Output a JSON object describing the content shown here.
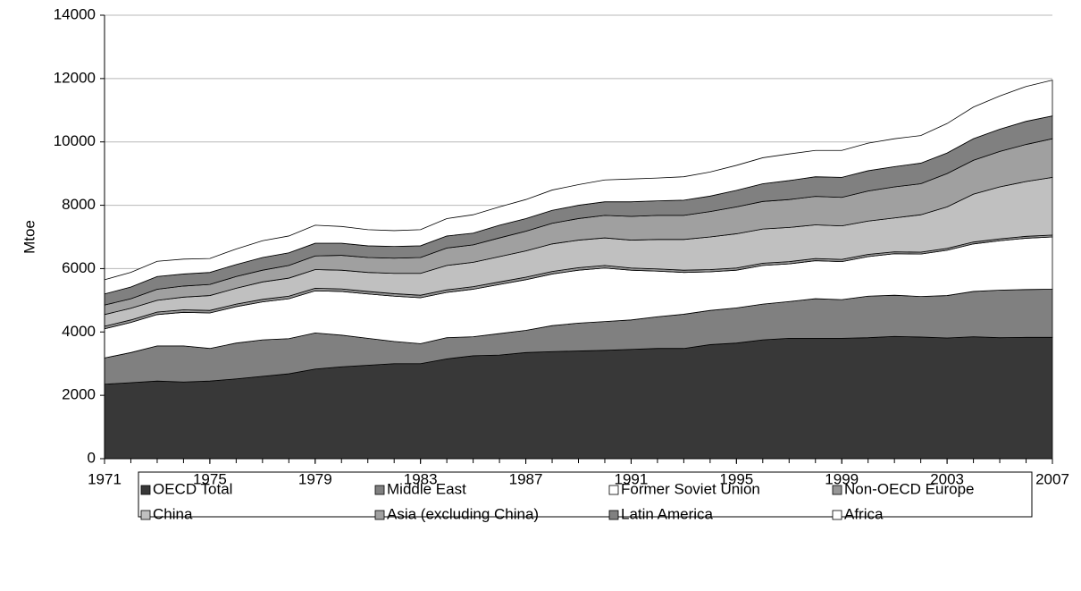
{
  "chart_data": {
    "type": "stacked_area",
    "y_label": "Mtoe",
    "x": [
      1971,
      1972,
      1973,
      1974,
      1975,
      1976,
      1977,
      1978,
      1979,
      1980,
      1981,
      1982,
      1983,
      1984,
      1985,
      1986,
      1987,
      1988,
      1989,
      1990,
      1991,
      1992,
      1993,
      1994,
      1995,
      1996,
      1997,
      1998,
      1999,
      2000,
      2001,
      2002,
      2003,
      2004,
      2005,
      2006,
      2007
    ],
    "xlim": [
      1971,
      2007
    ],
    "xticks": [
      1971,
      1975,
      1979,
      1983,
      1987,
      1991,
      1995,
      1999,
      2003,
      2007
    ],
    "ylim": [
      0,
      14000
    ],
    "yticks": [
      0,
      2000,
      4000,
      6000,
      8000,
      10000,
      12000,
      14000
    ],
    "grid": true,
    "series": [
      {
        "name": "OECD Total",
        "color": "#383838",
        "values": [
          2350,
          2400,
          2450,
          2420,
          2450,
          2520,
          2600,
          2680,
          2830,
          2900,
          2950,
          3000,
          3000,
          3150,
          3250,
          3270,
          3350,
          3380,
          3400,
          3420,
          3450,
          3480,
          3480,
          3600,
          3650,
          3750,
          3800,
          3800,
          3800,
          3820,
          3860,
          3840,
          3810,
          3850,
          3820,
          3830,
          3830
        ]
      },
      {
        "name": "Middle East",
        "color": "#808080",
        "values": [
          830,
          950,
          1110,
          1140,
          1030,
          1130,
          1150,
          1110,
          1140,
          1000,
          850,
          700,
          630,
          670,
          600,
          680,
          700,
          820,
          880,
          910,
          930,
          1000,
          1080,
          1080,
          1110,
          1130,
          1160,
          1250,
          1220,
          1310,
          1300,
          1280,
          1340,
          1430,
          1500,
          1510,
          1520
        ]
      },
      {
        "name": "Former Soviet Union",
        "color": "#ffffff",
        "values": [
          920,
          950,
          990,
          1060,
          1120,
          1150,
          1200,
          1260,
          1330,
          1380,
          1400,
          1430,
          1450,
          1430,
          1500,
          1550,
          1600,
          1630,
          1670,
          1690,
          1570,
          1440,
          1320,
          1220,
          1190,
          1220,
          1190,
          1200,
          1200,
          1250,
          1310,
          1340,
          1430,
          1500,
          1560,
          1620,
          1650
        ]
      },
      {
        "name": "Non-OECD Europe",
        "color": "#969696",
        "values": [
          80,
          80,
          80,
          80,
          80,
          80,
          80,
          80,
          80,
          80,
          80,
          80,
          80,
          80,
          80,
          80,
          80,
          80,
          80,
          80,
          70,
          70,
          70,
          70,
          70,
          70,
          70,
          70,
          70,
          70,
          60,
          60,
          60,
          60,
          60,
          60,
          60
        ]
      },
      {
        "name": "China",
        "color": "#c0c0c0",
        "values": [
          370,
          370,
          370,
          400,
          470,
          500,
          550,
          570,
          590,
          590,
          600,
          640,
          690,
          770,
          770,
          800,
          830,
          870,
          870,
          870,
          880,
          930,
          970,
          1030,
          1080,
          1080,
          1080,
          1060,
          1060,
          1050,
          1070,
          1180,
          1310,
          1510,
          1640,
          1730,
          1820
        ]
      },
      {
        "name": "Asia (excluding China)",
        "color": "#a0a0a0",
        "values": [
          300,
          300,
          350,
          350,
          350,
          370,
          370,
          400,
          430,
          470,
          470,
          480,
          500,
          550,
          550,
          590,
          620,
          650,
          680,
          710,
          750,
          760,
          760,
          800,
          850,
          870,
          880,
          900,
          900,
          950,
          980,
          980,
          1050,
          1070,
          1120,
          1170,
          1220
        ]
      },
      {
        "name": "Latin America",
        "color": "#808080",
        "values": [
          350,
          370,
          400,
          380,
          380,
          380,
          400,
          400,
          400,
          380,
          370,
          370,
          370,
          380,
          370,
          400,
          400,
          410,
          420,
          430,
          460,
          460,
          480,
          490,
          520,
          560,
          600,
          620,
          630,
          640,
          640,
          650,
          650,
          680,
          700,
          730,
          720
        ]
      },
      {
        "name": "Africa",
        "color": "#ffffff",
        "values": [
          450,
          460,
          480,
          470,
          440,
          490,
          530,
          530,
          570,
          530,
          510,
          500,
          510,
          550,
          580,
          580,
          600,
          640,
          650,
          690,
          720,
          720,
          740,
          760,
          790,
          820,
          840,
          830,
          850,
          870,
          880,
          870,
          930,
          1000,
          1050,
          1100,
          1130
        ]
      }
    ]
  }
}
